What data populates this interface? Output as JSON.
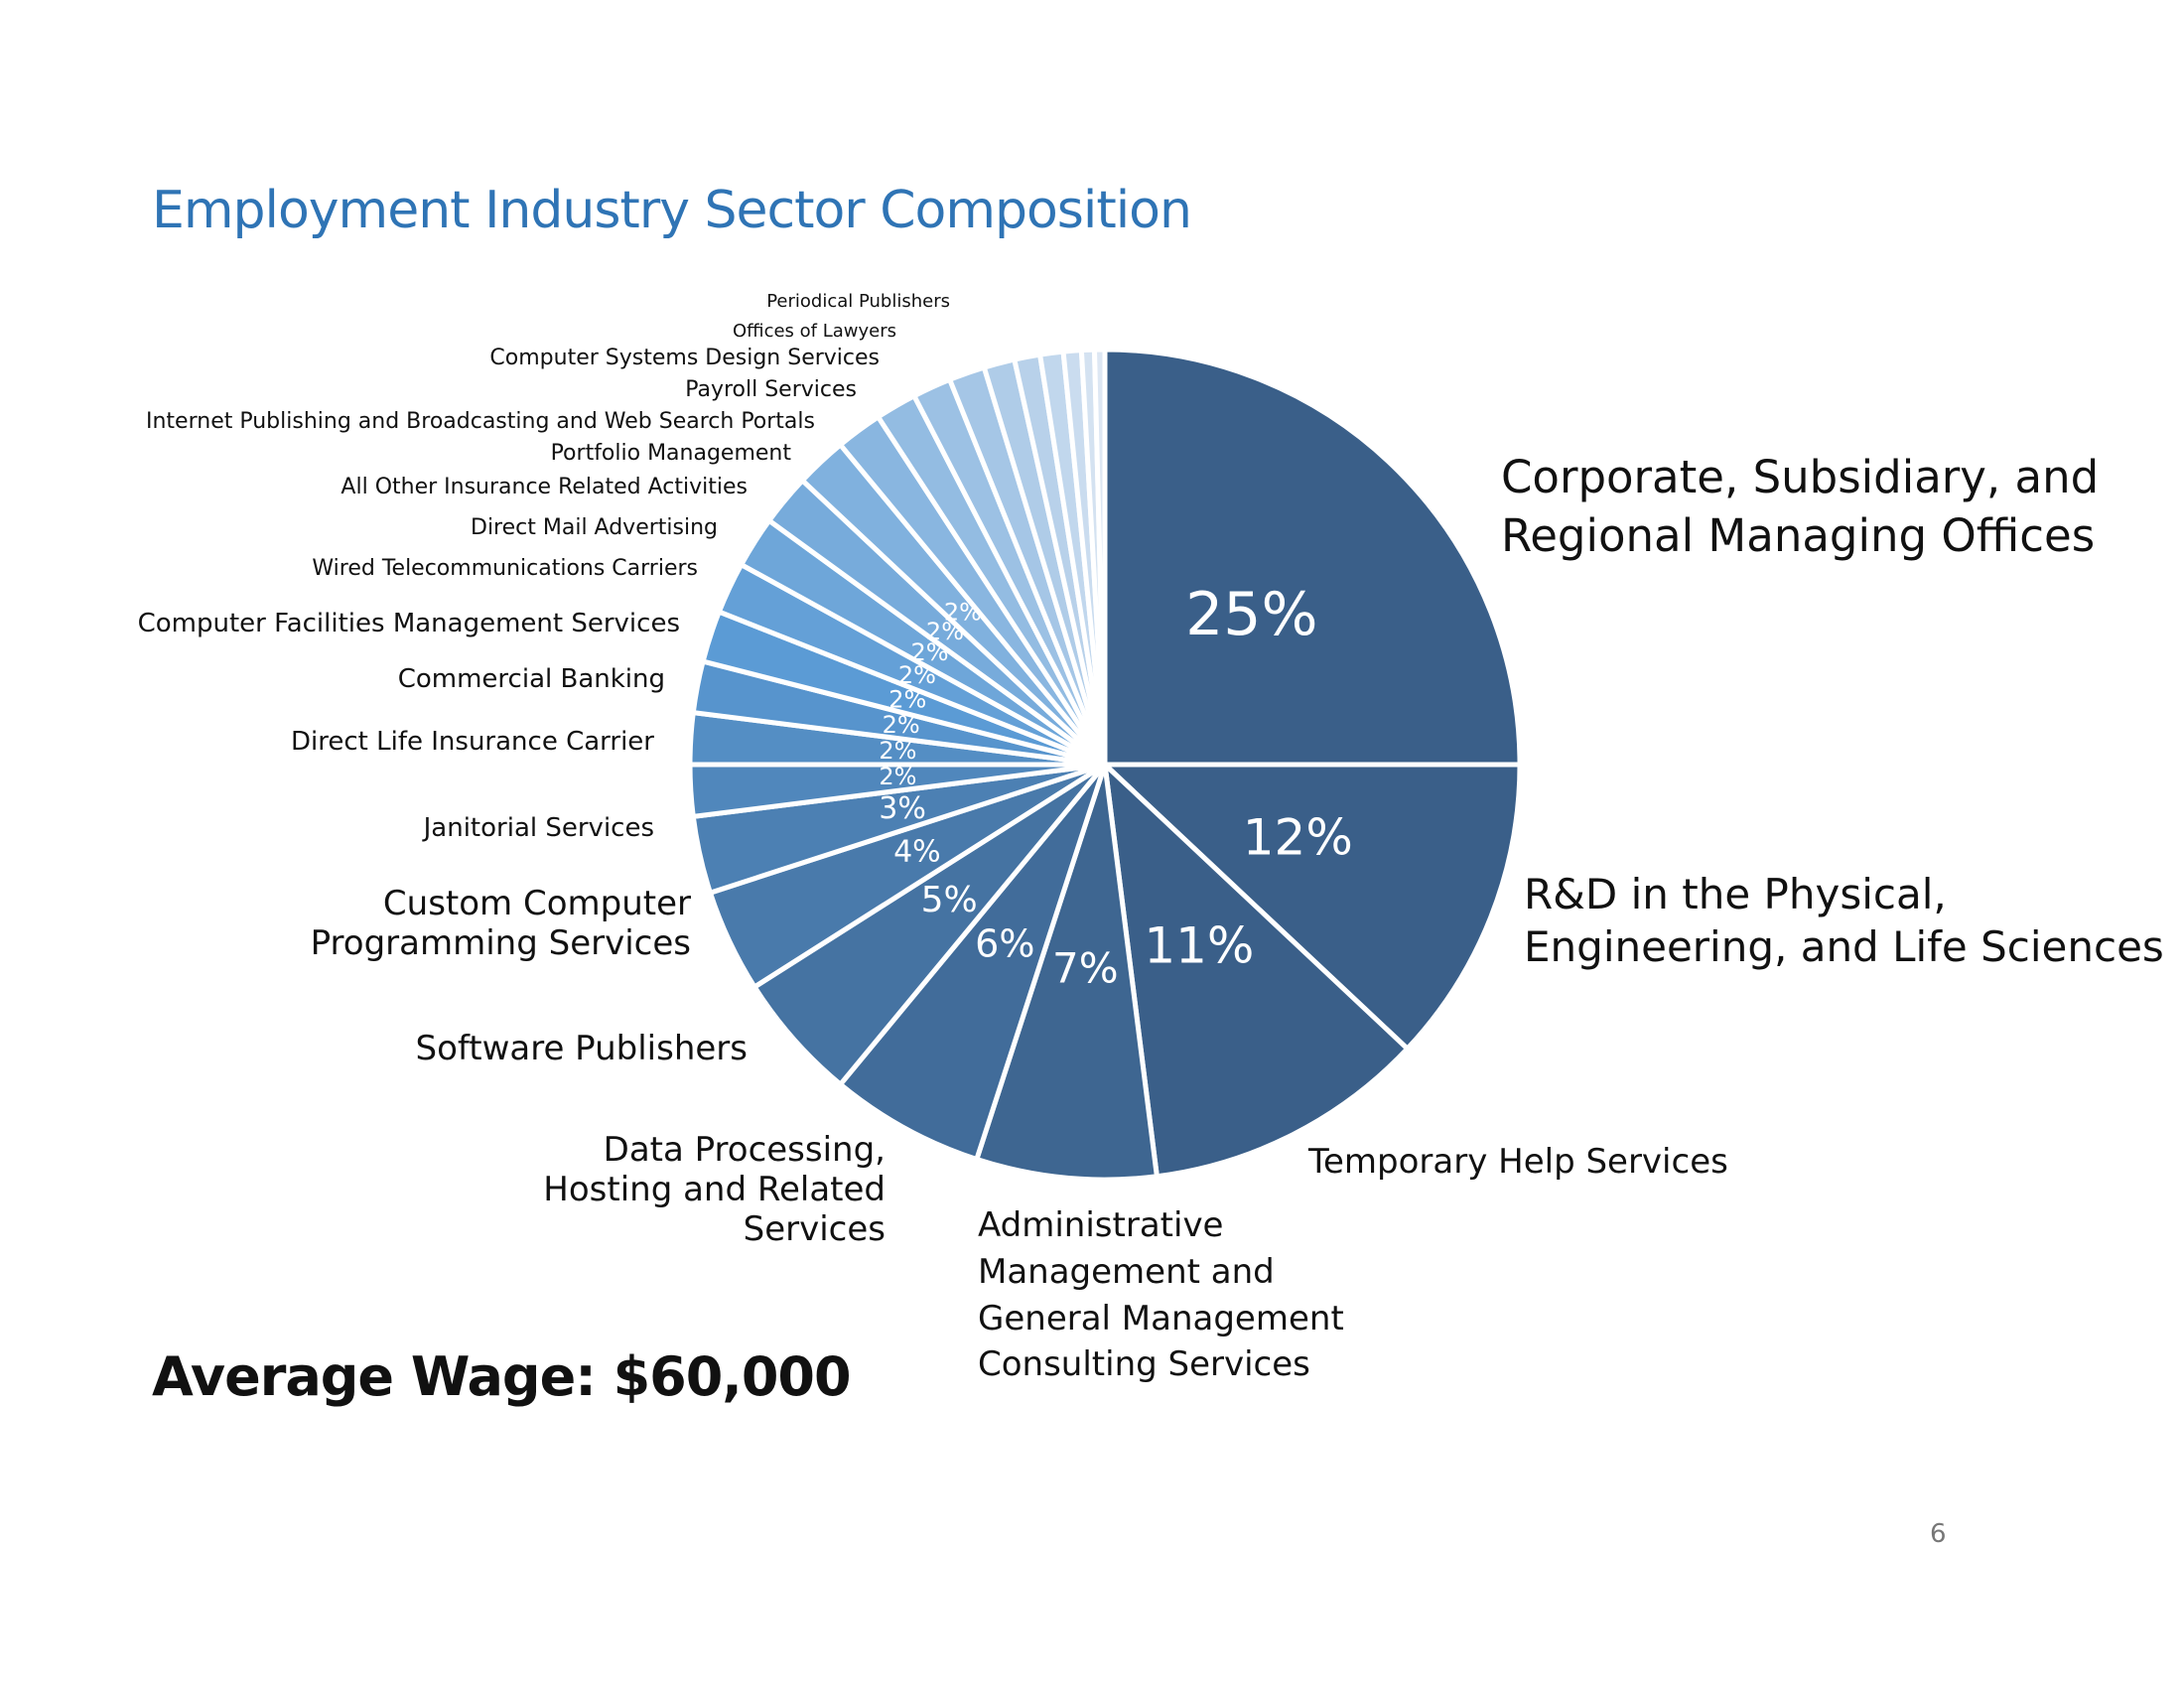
{
  "chart_data": {
    "type": "pie",
    "title": "Employment Industry Sector Composition",
    "start_angle": "top, clockwise",
    "slices": [
      {
        "name": "Corporate, Subsidiary, and Regional Managing Offices",
        "value": 25,
        "label": "25%"
      },
      {
        "name": "R&D in the Physical, Engineering, and Life Sciences",
        "value": 12,
        "label": "12%"
      },
      {
        "name": "Temporary Help Services",
        "value": 11,
        "label": "11%"
      },
      {
        "name": "Administrative Management and General Management Consulting Services",
        "value": 7,
        "label": "7%"
      },
      {
        "name": "Data Processing, Hosting and Related Services",
        "value": 6,
        "label": "6%"
      },
      {
        "name": "Software Publishers",
        "value": 5,
        "label": "5%"
      },
      {
        "name": "Custom Computer Programming Services",
        "value": 4,
        "label": "4%"
      },
      {
        "name": "Janitorial Services",
        "value": 3,
        "label": "3%"
      },
      {
        "name": "Direct Life Insurance Carrier",
        "value": 2,
        "label": "2%"
      },
      {
        "name": "Commercial Banking",
        "value": 2,
        "label": "2%"
      },
      {
        "name": "Computer Facilities Management Services",
        "value": 2,
        "label": "2%"
      },
      {
        "name": "Wired Telecommunications Carriers",
        "value": 2,
        "label": "2%"
      },
      {
        "name": "Direct Mail Advertising",
        "value": 2,
        "label": "2%"
      },
      {
        "name": "All Other Insurance Related Activities",
        "value": 2,
        "label": "2%"
      },
      {
        "name": "Portfolio Management",
        "value": 2,
        "label": "2%"
      },
      {
        "name": "Internet Publishing and Broadcasting and Web Search Portals",
        "value": 2,
        "label": "2%"
      },
      {
        "name": "Payroll Services",
        "value": 1.8,
        "label": ""
      },
      {
        "name": "Computer Systems Design Services",
        "value": 1.6,
        "label": ""
      },
      {
        "name": "Offices of Lawyers",
        "value": 1.5,
        "label": ""
      },
      {
        "name": "Periodical Publishers",
        "value": 1.4,
        "label": ""
      },
      {
        "name": "",
        "value": 1.2,
        "label": ""
      },
      {
        "name": "",
        "value": 1.0,
        "label": ""
      },
      {
        "name": "",
        "value": 0.9,
        "label": ""
      },
      {
        "name": "",
        "value": 0.7,
        "label": ""
      },
      {
        "name": "",
        "value": 0.5,
        "label": ""
      },
      {
        "name": "",
        "value": 0.4,
        "label": ""
      }
    ],
    "colors": {
      "dark": "#3a5f89",
      "mid": "#5b9bd5",
      "light": "#dde7f3",
      "title": "#2f74b5"
    },
    "legend": "labels placed around pie"
  },
  "labels": {
    "periodical": "Periodical Publishers",
    "lawyers": "Offices of Lawyers",
    "csds": "Computer Systems Design Services",
    "payroll": "Payroll Services",
    "internet": "Internet Publishing and Broadcasting and Web Search Portals",
    "portfolio": "Portfolio Management",
    "insurance": "All Other Insurance Related Activities",
    "mail": "Direct Mail Advertising",
    "wired": "Wired Telecommunications Carriers",
    "facilities": "Computer Facilities Management Services",
    "banking": "Commercial Banking",
    "life": "Direct Life Insurance Carrier",
    "janitorial": "Janitorial Services",
    "custom1": "Custom Computer",
    "custom2": "Programming Services",
    "software": "Software Publishers",
    "data1": "Data Processing,",
    "data2": "Hosting and Related",
    "data3": "Services",
    "admin1": "Administrative",
    "admin2": "Management and",
    "admin3": "General Management",
    "admin4": "Consulting Services",
    "temp": "Temporary Help Services",
    "rd1": "R&D in the Physical,",
    "rd2": "Engineering, and Life Sciences",
    "corp1": "Corporate, Subsidiary, and",
    "corp2": "Regional Managing Offices"
  },
  "average_wage": "Average Wage: $60,000",
  "page_number": "6"
}
